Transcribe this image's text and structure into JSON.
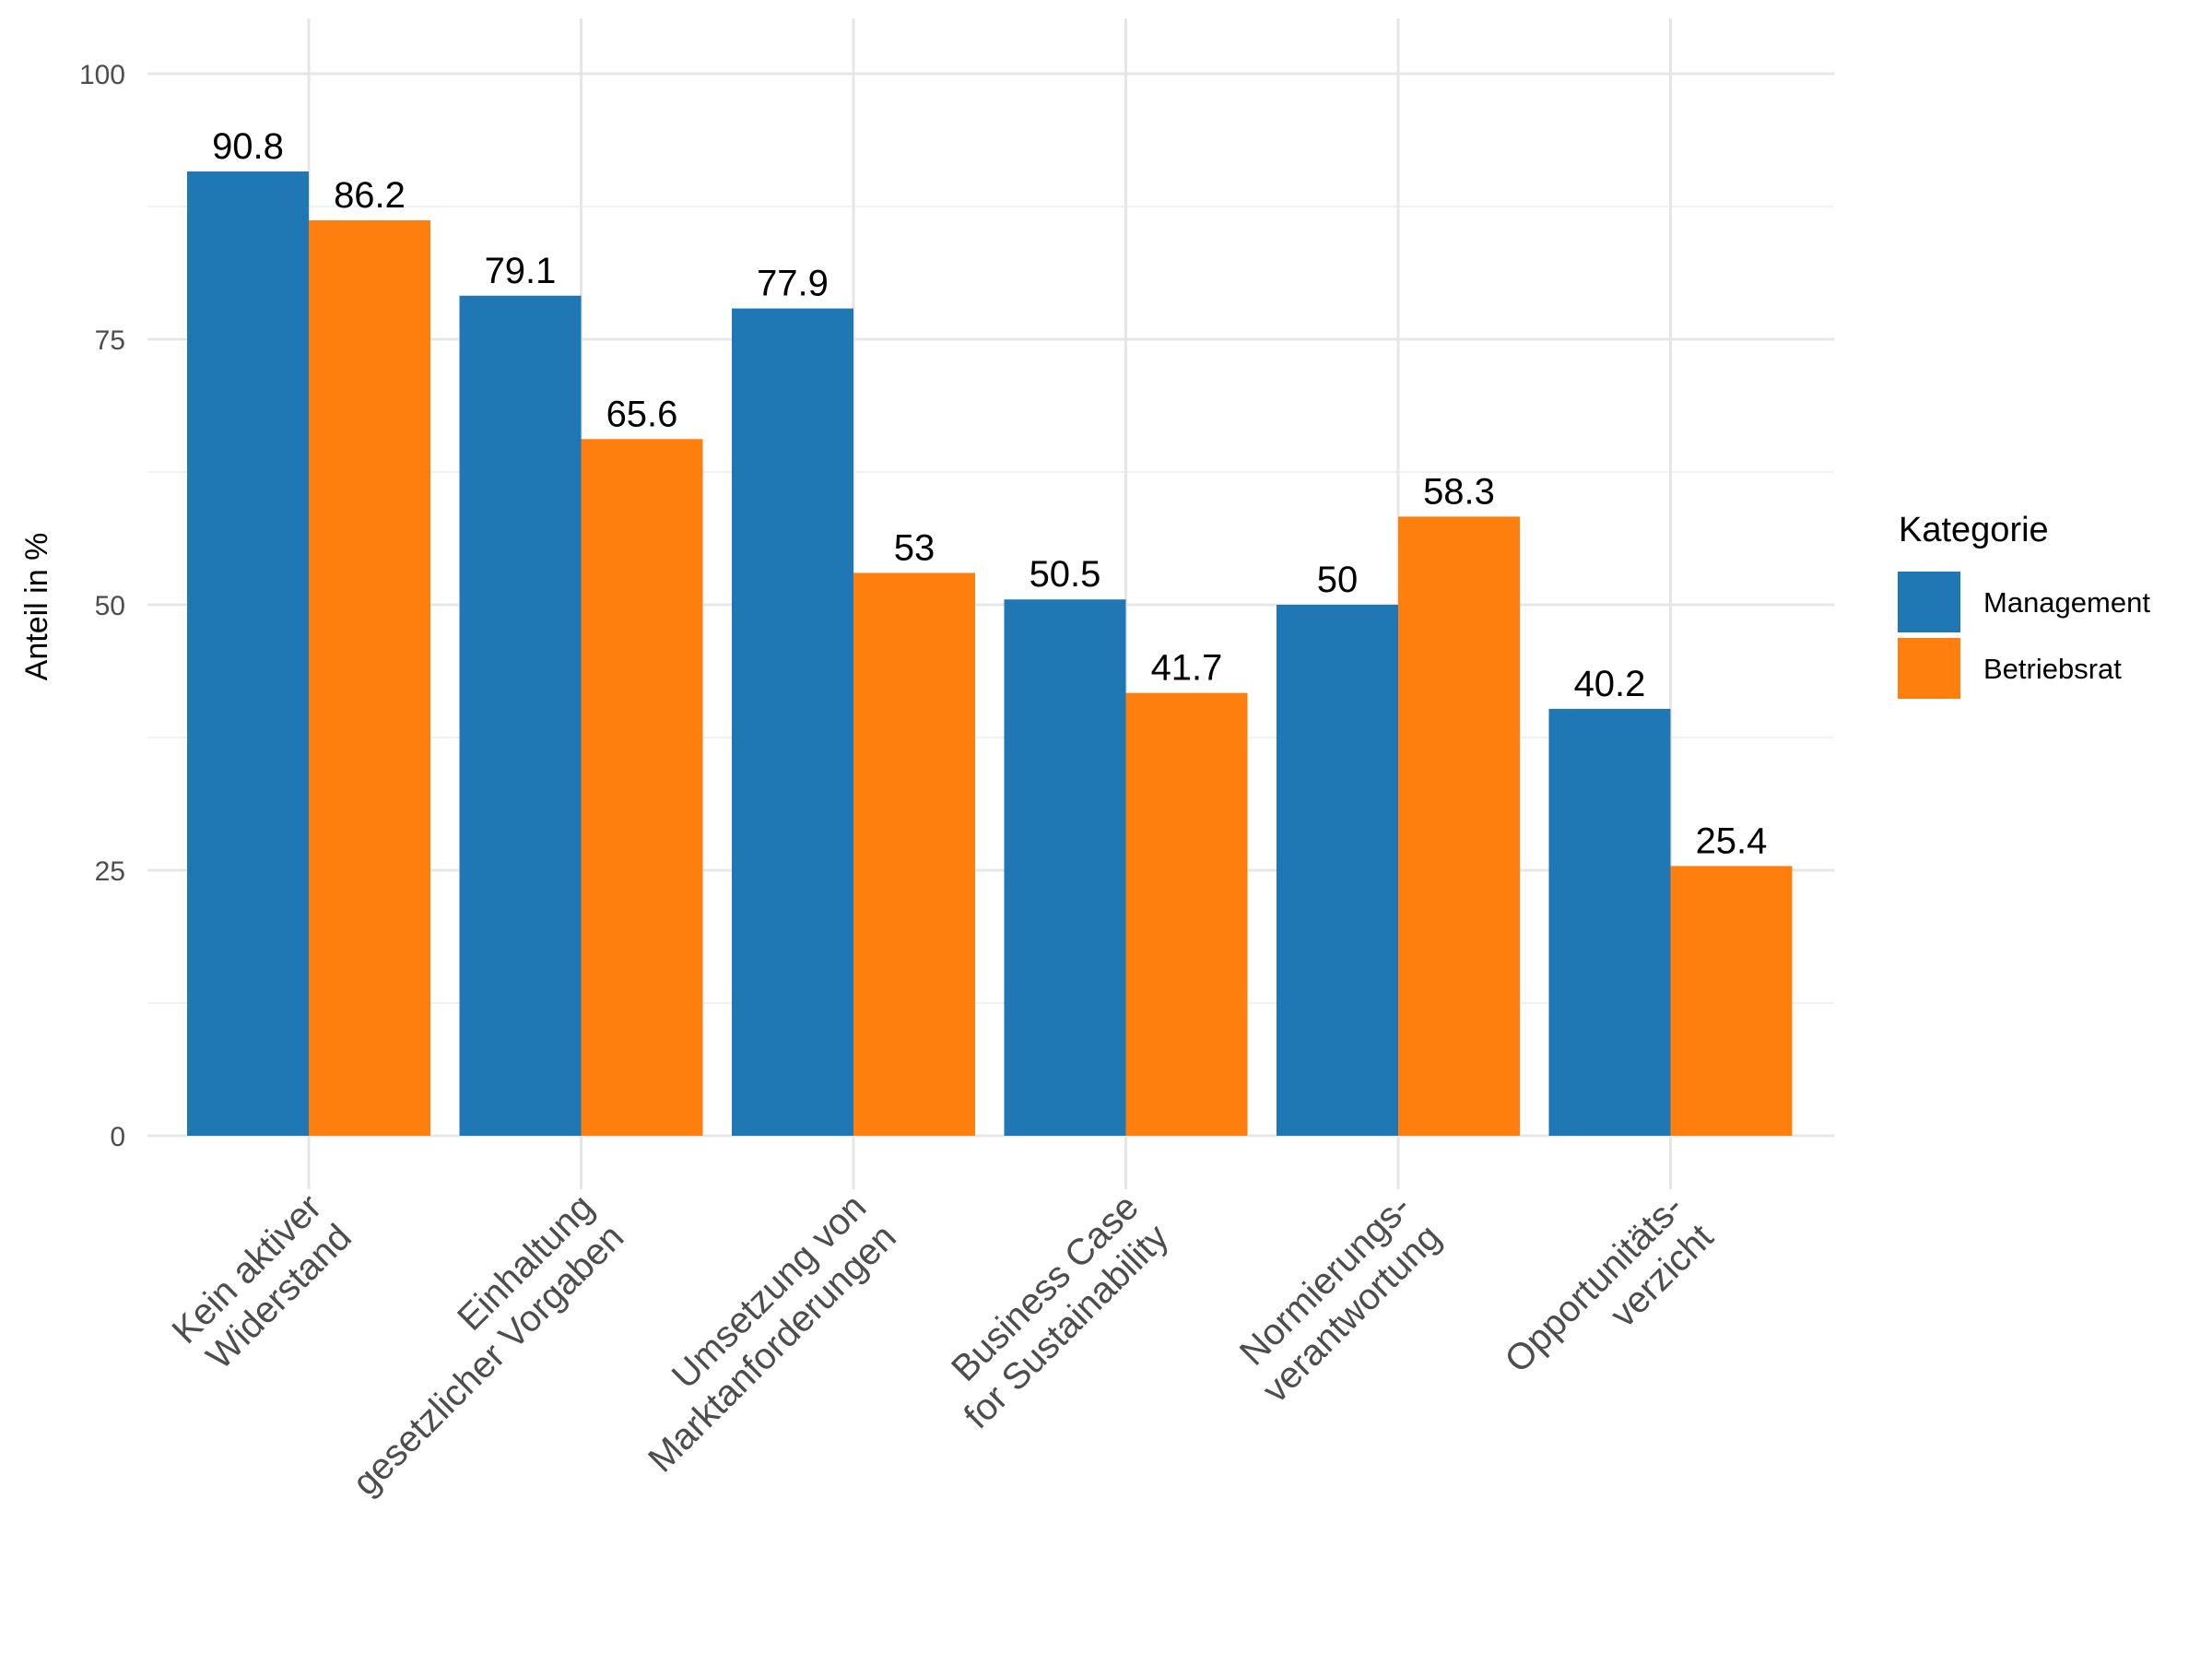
{
  "chart_data": {
    "type": "bar",
    "title": "",
    "xlabel": "",
    "ylabel": "Anteil in %",
    "ylim": [
      0,
      100
    ],
    "yticks": [
      "0",
      "25",
      "50",
      "75",
      "100"
    ],
    "grid": true,
    "legend_position": "right",
    "legend_title": "Kategorie",
    "categories": [
      [
        "Kein aktiver",
        "Widerstand"
      ],
      [
        "Einhaltung",
        "gesetzlicher Vorgaben"
      ],
      [
        "Umsetzung von",
        "Marktanforderungen"
      ],
      [
        "Business Case",
        "for Sustainability"
      ],
      [
        "Normierungs-",
        "verantwortung"
      ],
      [
        "Opportunitäts-",
        "verzicht"
      ]
    ],
    "series": [
      {
        "name": "Management",
        "color": "#1F77B4",
        "values": [
          90.8,
          79.1,
          77.9,
          50.5,
          50,
          40.2
        ],
        "labels": [
          "90.8",
          "79.1",
          "77.9",
          "50.5",
          "50",
          "40.2"
        ]
      },
      {
        "name": "Betriebsrat",
        "color": "#FF7F0E",
        "values": [
          86.2,
          65.6,
          53,
          41.7,
          58.3,
          25.4
        ],
        "labels": [
          "86.2",
          "65.6",
          "53",
          "41.7",
          "58.3",
          "25.4"
        ]
      }
    ]
  }
}
